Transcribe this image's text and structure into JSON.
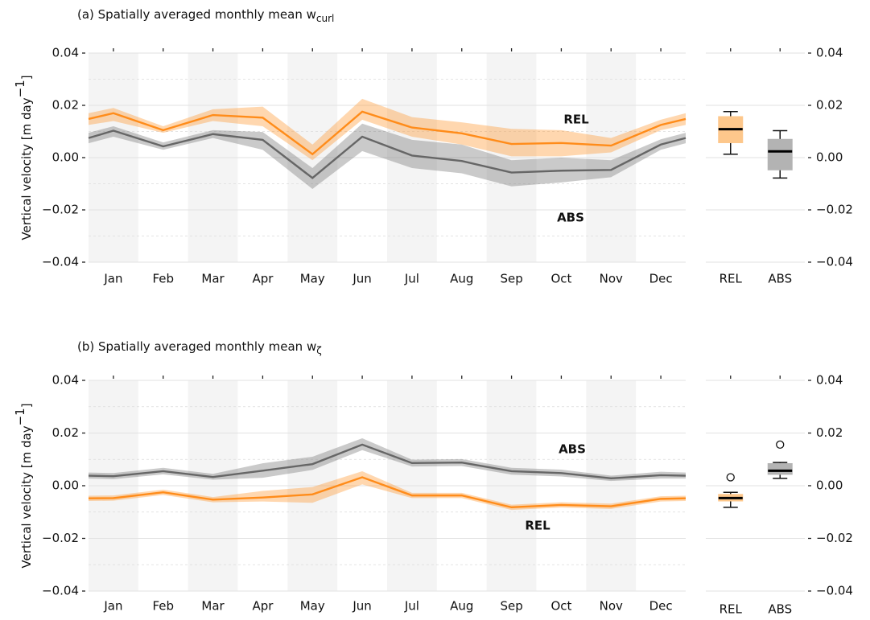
{
  "chart_data": [
    {
      "type": "line",
      "title": "(a) Spatially averaged monthly mean w",
      "title_subscript": "curl",
      "ylabel": "Vertical velocity [m day",
      "ylabel_superscript": "−1",
      "ylabel_end": "]",
      "x": [
        0.5,
        1,
        2,
        3,
        4,
        5,
        6,
        7,
        8,
        9,
        10,
        11,
        12,
        12.5
      ],
      "xlim": [
        0.5,
        12.5
      ],
      "xticks": [
        {
          "value": 1,
          "label": "Jan"
        },
        {
          "value": 2,
          "label": "Feb"
        },
        {
          "value": 3,
          "label": "Mar"
        },
        {
          "value": 4,
          "label": "Apr"
        },
        {
          "value": 5,
          "label": "May"
        },
        {
          "value": 6,
          "label": "Jun"
        },
        {
          "value": 7,
          "label": "Jul"
        },
        {
          "value": 8,
          "label": "Aug"
        },
        {
          "value": 9,
          "label": "Sep"
        },
        {
          "value": 10,
          "label": "Oct"
        },
        {
          "value": 11,
          "label": "Nov"
        },
        {
          "value": 12,
          "label": "Dec"
        }
      ],
      "ylim": [
        -0.04,
        0.04
      ],
      "yticks": [
        {
          "value": 0.04,
          "label": "0.04"
        },
        {
          "value": 0.02,
          "label": "0.02"
        },
        {
          "value": 0,
          "label": "0.00"
        },
        {
          "value": -0.02,
          "label": "−0.02"
        },
        {
          "value": -0.04,
          "label": "−0.04"
        }
      ],
      "yminorticks": [
        0.03,
        0.01,
        -0.01,
        -0.03
      ],
      "series": [
        {
          "name": "REL",
          "color": "#ff8c1a",
          "values": [
            0.0148,
            0.017,
            0.0105,
            0.0163,
            0.0153,
            0.0013,
            0.0176,
            0.0115,
            0.0093,
            0.0052,
            0.0056,
            0.0046,
            0.0125,
            0.0148
          ],
          "lower": [
            0.0125,
            0.014,
            0.0095,
            0.014,
            0.012,
            -0.001,
            0.0145,
            0.008,
            0.005,
            0.0005,
            0.0005,
            0.002,
            0.0105,
            0.0125
          ],
          "upper": [
            0.017,
            0.019,
            0.012,
            0.0185,
            0.0195,
            0.005,
            0.0225,
            0.0155,
            0.0135,
            0.011,
            0.0105,
            0.0075,
            0.0145,
            0.017
          ]
        },
        {
          "name": "ABS",
          "color": "#666666",
          "values": [
            0.0075,
            0.0103,
            0.0043,
            0.009,
            0.0068,
            -0.0078,
            0.008,
            0.0008,
            -0.0013,
            -0.0057,
            -0.005,
            -0.0047,
            0.005,
            0.0075
          ],
          "lower": [
            0.0055,
            0.008,
            0.003,
            0.0075,
            0.003,
            -0.012,
            0.0025,
            -0.004,
            -0.006,
            -0.011,
            -0.0095,
            -0.0075,
            0.003,
            0.0055
          ],
          "upper": [
            0.0095,
            0.012,
            0.0058,
            0.0105,
            0.0098,
            -0.004,
            0.013,
            0.0068,
            0.005,
            -0.001,
            0,
            -0.001,
            0.007,
            0.0095
          ]
        }
      ]
    },
    {
      "type": "box",
      "categories": [
        "REL",
        "ABS"
      ],
      "colors": [
        "#fdc78b",
        "#b3b3b3"
      ],
      "boxes": [
        {
          "whislo": 0.0013,
          "q1": 0.0057,
          "med": 0.0109,
          "q3": 0.0157,
          "whishi": 0.0176,
          "fliers": []
        },
        {
          "whislo": -0.0078,
          "q1": -0.0047,
          "med": 0.0024,
          "q3": 0.007,
          "whishi": 0.0103,
          "fliers": []
        }
      ],
      "ylim": [
        -0.04,
        0.04
      ],
      "yticks": [
        {
          "value": 0.04,
          "label": "0.04"
        },
        {
          "value": 0.02,
          "label": "0.02"
        },
        {
          "value": 0,
          "label": "0.00"
        },
        {
          "value": -0.02,
          "label": "−0.02"
        },
        {
          "value": -0.04,
          "label": "−0.04"
        }
      ]
    },
    {
      "type": "line",
      "title": "(b) Spatially averaged monthly mean w",
      "title_subscript": "ζ",
      "ylabel": "Vertical velocity [m day",
      "ylabel_superscript": "−1",
      "ylabel_end": "]",
      "x": [
        0.5,
        1,
        2,
        3,
        4,
        5,
        6,
        7,
        8,
        9,
        10,
        11,
        12,
        12.5
      ],
      "xlim": [
        0.5,
        12.5
      ],
      "xticks": [
        {
          "value": 1,
          "label": "Jan"
        },
        {
          "value": 2,
          "label": "Feb"
        },
        {
          "value": 3,
          "label": "Mar"
        },
        {
          "value": 4,
          "label": "Apr"
        },
        {
          "value": 5,
          "label": "May"
        },
        {
          "value": 6,
          "label": "Jun"
        },
        {
          "value": 7,
          "label": "Jul"
        },
        {
          "value": 8,
          "label": "Aug"
        },
        {
          "value": 9,
          "label": "Sep"
        },
        {
          "value": 10,
          "label": "Oct"
        },
        {
          "value": 11,
          "label": "Nov"
        },
        {
          "value": 12,
          "label": "Dec"
        }
      ],
      "ylim": [
        -0.04,
        0.04
      ],
      "yticks": [
        {
          "value": 0.04,
          "label": "0.04"
        },
        {
          "value": 0.02,
          "label": "0.02"
        },
        {
          "value": 0,
          "label": "0.00"
        },
        {
          "value": -0.02,
          "label": "−0.02"
        },
        {
          "value": -0.04,
          "label": "−0.04"
        }
      ],
      "yminorticks": [
        0.03,
        0.01,
        -0.01,
        -0.03
      ],
      "series": [
        {
          "name": "ABS",
          "color": "#666666",
          "values": [
            0.0038,
            0.0036,
            0.0055,
            0.0033,
            0.0057,
            0.0082,
            0.0156,
            0.0086,
            0.0088,
            0.0055,
            0.0048,
            0.0028,
            0.004,
            0.0038
          ],
          "lower": [
            0.0027,
            0.0025,
            0.0043,
            0.0023,
            0.003,
            0.006,
            0.0135,
            0.0073,
            0.0075,
            0.0042,
            0.0035,
            0.0018,
            0.0027,
            0.0027
          ],
          "upper": [
            0.005,
            0.0048,
            0.0068,
            0.0045,
            0.0085,
            0.011,
            0.018,
            0.0099,
            0.0101,
            0.0068,
            0.0061,
            0.0038,
            0.0053,
            0.005
          ]
        },
        {
          "name": "REL",
          "color": "#ff8c1a",
          "values": [
            -0.0048,
            -0.0047,
            -0.0025,
            -0.0053,
            -0.0045,
            -0.0033,
            0.0032,
            -0.0037,
            -0.0037,
            -0.0082,
            -0.0073,
            -0.0078,
            -0.005,
            -0.0048
          ],
          "lower": [
            -0.0058,
            -0.0057,
            -0.0035,
            -0.0063,
            -0.006,
            -0.0065,
            0.0005,
            -0.0047,
            -0.0047,
            -0.0092,
            -0.0083,
            -0.0088,
            -0.006,
            -0.0058
          ],
          "upper": [
            -0.0038,
            -0.0037,
            -0.0015,
            -0.0043,
            -0.002,
            -0.0005,
            0.0055,
            -0.0027,
            -0.0027,
            -0.0072,
            -0.0063,
            -0.0068,
            -0.004,
            -0.0038
          ]
        }
      ]
    },
    {
      "type": "box",
      "categories": [
        "REL",
        "ABS"
      ],
      "colors": [
        "#fdc78b",
        "#b3b3b3"
      ],
      "boxes": [
        {
          "whislo": -0.0082,
          "q1": -0.0058,
          "med": -0.0047,
          "q3": -0.0033,
          "whishi": -0.0025,
          "fliers": [
            0.0032
          ]
        },
        {
          "whislo": 0.0028,
          "q1": 0.0043,
          "med": 0.0057,
          "q3": 0.0084,
          "whishi": 0.0088,
          "fliers": [
            0.0156
          ]
        }
      ],
      "ylim": [
        -0.04,
        0.04
      ],
      "yticks": [
        {
          "value": 0.04,
          "label": "0.04"
        },
        {
          "value": 0.02,
          "label": "0.02"
        },
        {
          "value": 0,
          "label": "0.00"
        },
        {
          "value": -0.02,
          "label": "−0.02"
        },
        {
          "value": -0.04,
          "label": "−0.04"
        }
      ]
    }
  ]
}
